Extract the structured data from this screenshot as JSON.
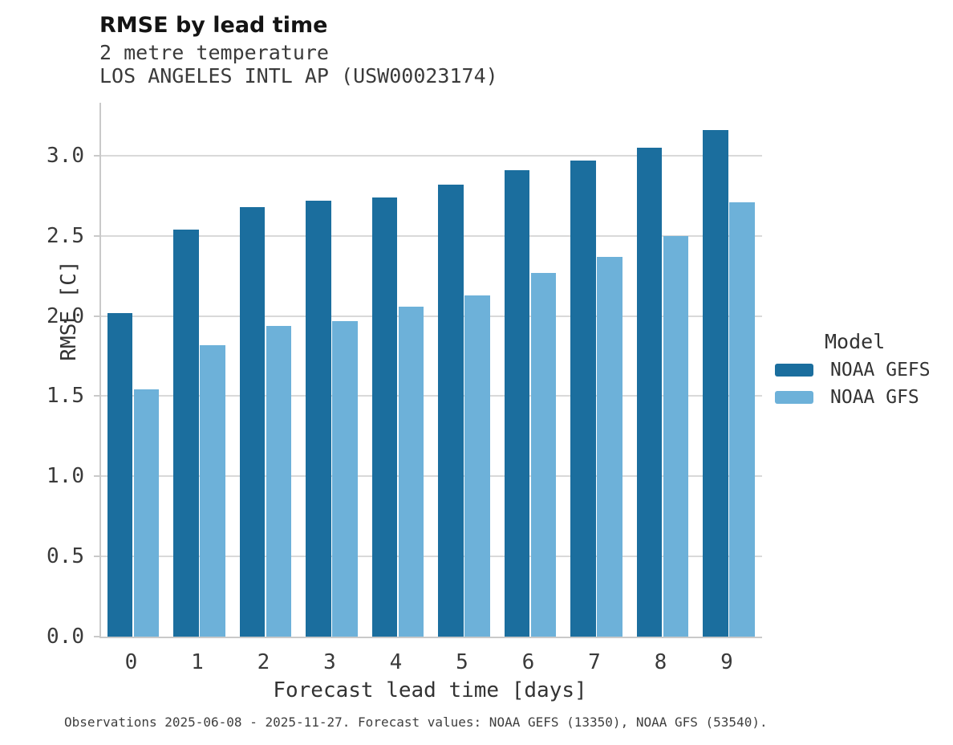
{
  "header": {
    "title": "RMSE by lead time",
    "subtitle_line1": "2 metre temperature",
    "subtitle_line2": "LOS ANGELES INTL AP (USW00023174)"
  },
  "chart_data": {
    "type": "bar",
    "title": "RMSE by lead time",
    "subtitle": [
      "2 metre temperature",
      "LOS ANGELES INTL AP (USW00023174)"
    ],
    "categories": [
      "0",
      "1",
      "2",
      "3",
      "4",
      "5",
      "6",
      "7",
      "8",
      "9"
    ],
    "series": [
      {
        "name": "NOAA GEFS",
        "color": "#1b6e9e",
        "values": [
          2.02,
          2.54,
          2.68,
          2.72,
          2.74,
          2.82,
          2.91,
          2.97,
          3.05,
          3.16
        ]
      },
      {
        "name": "NOAA GFS",
        "color": "#6db1d9",
        "values": [
          1.54,
          1.82,
          1.94,
          1.97,
          2.06,
          2.13,
          2.27,
          2.37,
          2.5,
          2.71
        ]
      }
    ],
    "xlabel": "Forecast lead time [days]",
    "ylabel": "RMSE [C]",
    "ylim": [
      0,
      3.33
    ],
    "yticks": [
      0.0,
      0.5,
      1.0,
      1.5,
      2.0,
      2.5,
      3.0
    ],
    "grid": "horizontal",
    "legend_title": "Model",
    "legend_position": "right-center"
  },
  "legend": {
    "title": "Model",
    "entries": [
      {
        "label": "NOAA GEFS",
        "color": "#1b6e9e"
      },
      {
        "label": "NOAA GFS",
        "color": "#6db1d9"
      }
    ]
  },
  "footer": {
    "note": "Observations 2025-06-08 - 2025-11-27. Forecast values: NOAA GEFS (13350), NOAA GFS (53540)."
  },
  "colors": {
    "background": "#ffffff",
    "gridline": "#d9d9d9",
    "axis_spine": "#c9c9c9",
    "title_text": "#141414",
    "subtitle_text": "#3a3a3a",
    "tick_text": "#3a3a3a",
    "footer_text": "#3f3f3f"
  }
}
